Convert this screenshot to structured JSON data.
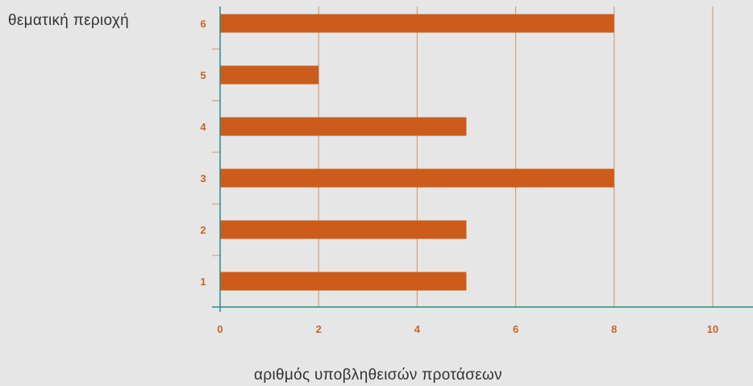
{
  "chart_data": {
    "type": "bar",
    "orientation": "horizontal",
    "categories": [
      "1",
      "2",
      "3",
      "4",
      "5",
      "6"
    ],
    "values": [
      5,
      5,
      8,
      5,
      2,
      8
    ],
    "xlabel": "αριθμός υποβληθεισών προτάσεων",
    "ylabel": "θεματική περιοχή",
    "xlim": [
      0,
      10
    ],
    "xticks": [
      "0",
      "2",
      "4",
      "6",
      "8",
      "10"
    ],
    "grid": "vertical",
    "colors": {
      "bar": "#cc5c1c",
      "tick_label": "#c8642a",
      "axis": "#2a8a8a",
      "gridline": "#c8956f",
      "background": "#e6e6e6"
    }
  }
}
